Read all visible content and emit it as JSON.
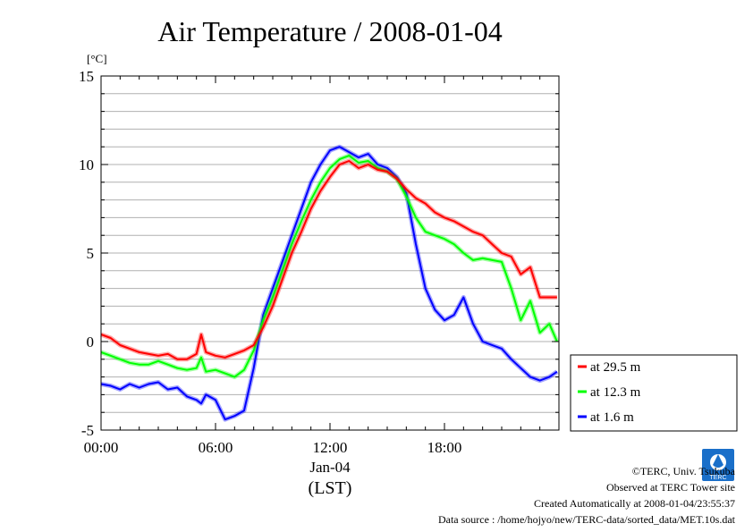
{
  "chart_data": {
    "type": "line",
    "title": "Air Temperature / 2008-01-04",
    "ylabel": "[°C]",
    "xlabel_date": "Jan-04",
    "xlabel_tz": "(LST)",
    "x_ticks": [
      "00:00",
      "06:00",
      "12:00",
      "18:00"
    ],
    "x_tick_hours": [
      0,
      6,
      12,
      18
    ],
    "xlim_hours": [
      0,
      24
    ],
    "ylim": [
      -5,
      15
    ],
    "y_ticks": [
      -5,
      0,
      5,
      10,
      15
    ],
    "grid": true,
    "legend_position": "bottom-right outside",
    "x_hours": [
      0,
      0.5,
      1,
      1.5,
      2,
      2.5,
      3,
      3.5,
      4,
      4.5,
      5,
      5.25,
      5.5,
      6,
      6.5,
      7,
      7.5,
      8,
      8.5,
      9,
      9.5,
      10,
      10.5,
      11,
      11.5,
      12,
      12.5,
      13,
      13.5,
      14,
      14.5,
      15,
      15.5,
      16,
      16.5,
      17,
      17.5,
      18,
      18.5,
      19,
      19.5,
      20,
      20.5,
      21,
      21.5,
      22,
      22.5,
      23,
      23.5,
      23.9
    ],
    "series": [
      {
        "name": "at 29.5 m",
        "color": "#ff0000",
        "values": [
          0.4,
          0.2,
          -0.2,
          -0.4,
          -0.6,
          -0.7,
          -0.8,
          -0.7,
          -1.0,
          -1.0,
          -0.7,
          0.4,
          -0.6,
          -0.8,
          -0.9,
          -0.7,
          -0.5,
          -0.2,
          0.8,
          2.0,
          3.5,
          5.0,
          6.2,
          7.5,
          8.5,
          9.3,
          10.0,
          10.2,
          9.8,
          10.0,
          9.7,
          9.6,
          9.2,
          8.6,
          8.1,
          7.8,
          7.3,
          7.0,
          6.8,
          6.5,
          6.2,
          6.0,
          5.5,
          5.0,
          4.8,
          3.8,
          4.2,
          2.5,
          2.5,
          2.5
        ]
      },
      {
        "name": "at 12.3 m",
        "color": "#00ff00",
        "values": [
          -0.6,
          -0.8,
          -1.0,
          -1.2,
          -1.3,
          -1.3,
          -1.1,
          -1.3,
          -1.5,
          -1.6,
          -1.5,
          -0.9,
          -1.7,
          -1.6,
          -1.8,
          -2.0,
          -1.6,
          -0.5,
          1.2,
          2.5,
          4.0,
          5.5,
          6.8,
          8.0,
          9.0,
          9.8,
          10.3,
          10.5,
          10.1,
          10.2,
          9.8,
          9.6,
          9.2,
          8.2,
          7.0,
          6.2,
          6.0,
          5.8,
          5.5,
          5.0,
          4.6,
          4.7,
          4.6,
          4.5,
          3.0,
          1.2,
          2.3,
          0.5,
          1.0,
          0.0
        ]
      },
      {
        "name": "at 1.6 m",
        "color": "#0000ff",
        "values": [
          -2.4,
          -2.5,
          -2.7,
          -2.4,
          -2.6,
          -2.4,
          -2.3,
          -2.7,
          -2.6,
          -3.1,
          -3.3,
          -3.5,
          -3.0,
          -3.3,
          -4.4,
          -4.2,
          -3.9,
          -1.5,
          1.5,
          3.0,
          4.5,
          6.0,
          7.5,
          9.0,
          10.0,
          10.8,
          11.0,
          10.7,
          10.4,
          10.6,
          10.0,
          9.8,
          9.3,
          8.4,
          5.5,
          3.0,
          1.8,
          1.2,
          1.5,
          2.5,
          1.0,
          0.0,
          -0.2,
          -0.4,
          -1.0,
          -1.5,
          -2.0,
          -2.2,
          -2.0,
          -1.7
        ]
      }
    ]
  },
  "footer": {
    "copyright": "©TERC, Univ. Tsukuba",
    "site": "Observed at TERC Tower site",
    "created": "Created Automatically at 2008-01-04/23:55:37",
    "source": "Data source : /home/hojyo/new/TERC-data/sorted_data/MET.10s.dat",
    "logo_text": "TERC"
  }
}
